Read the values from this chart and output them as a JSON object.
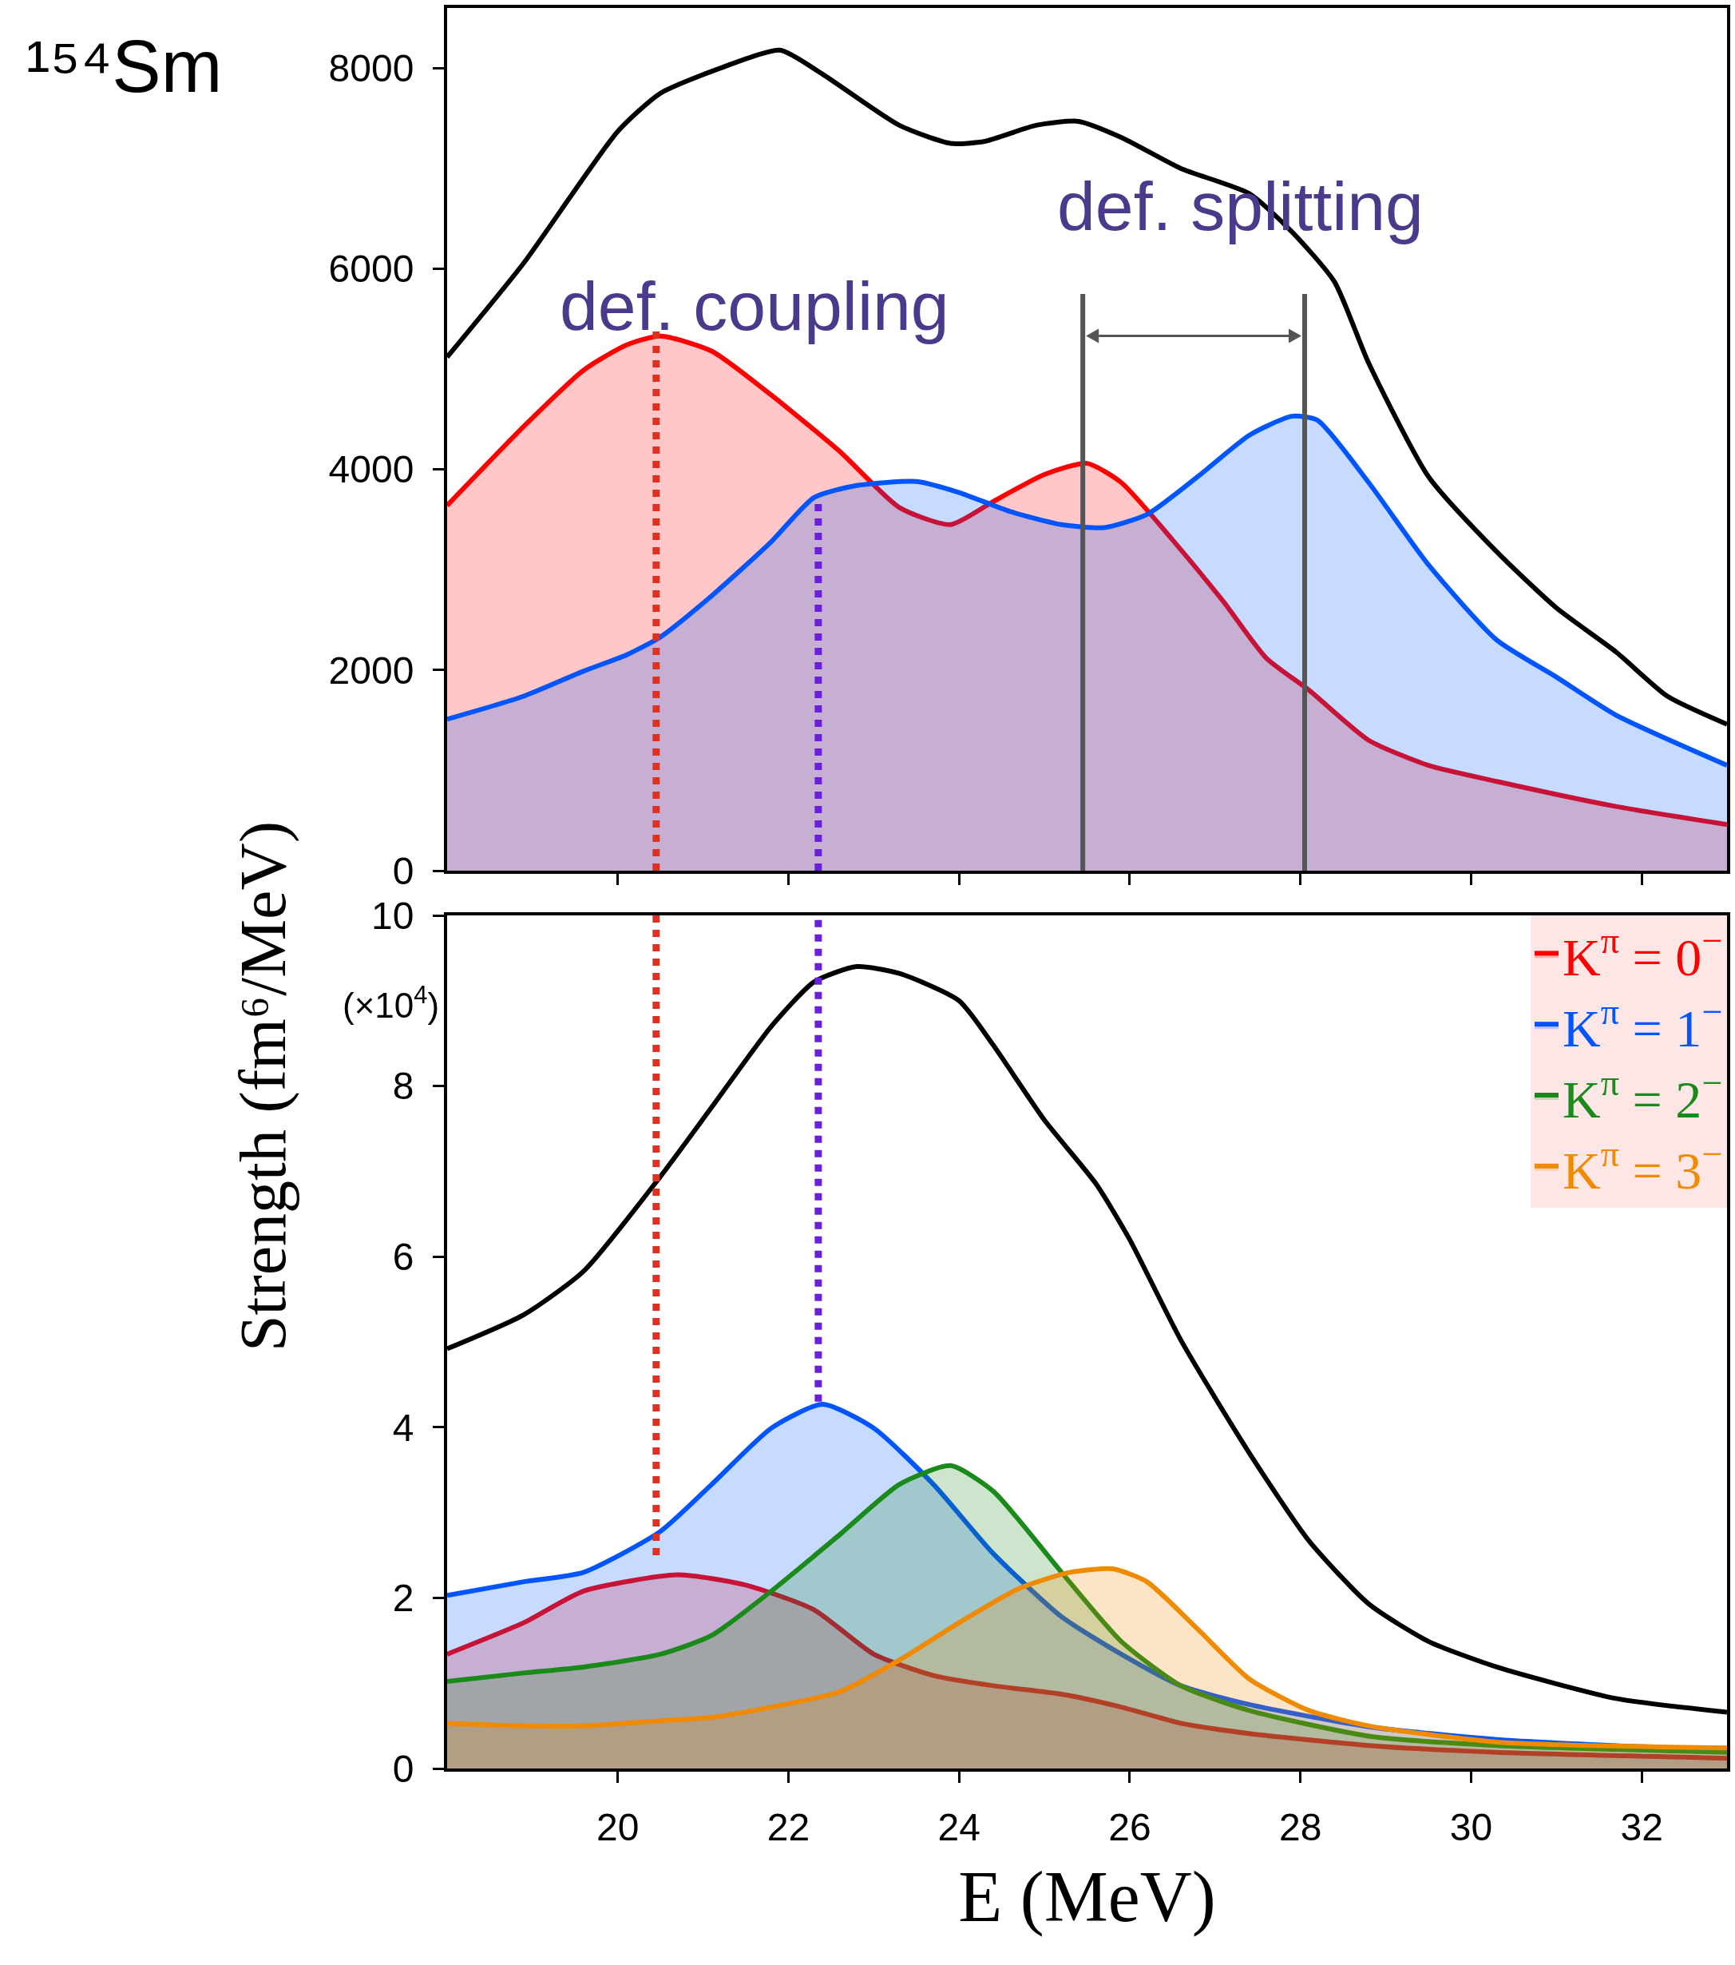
{
  "chart_data": [
    {
      "type": "area",
      "ylabel": "Strength (fm⁶/MeV)",
      "xlim": [
        18,
        33
      ],
      "xticks": [
        20,
        22,
        24,
        26,
        28,
        30,
        32
      ],
      "ylim": [
        0,
        8600
      ],
      "yticks": [
        0,
        2000,
        4000,
        6000,
        8000
      ],
      "tick_labels": "y",
      "annotations": [
        "¹⁵⁴Sm",
        "def. coupling",
        "def. splitting"
      ],
      "series": [
        {
          "type": "line",
          "color": "#000000",
          "x": [
            18,
            18.9,
            20,
            20.5,
            21.2,
            21.9,
            22.4,
            23.3,
            23.9,
            24.3,
            24.9,
            25.4,
            25.9,
            26.6,
            27.4,
            27.9,
            28.4,
            28.8,
            29.5,
            30.3,
            31,
            31.7,
            32.3,
            33
          ],
          "values": [
            5120,
            6060,
            7370,
            7750,
            8000,
            8180,
            7940,
            7430,
            7250,
            7270,
            7430,
            7470,
            7310,
            7000,
            6750,
            6370,
            5870,
            5060,
            3930,
            3180,
            2620,
            2180,
            1740,
            1460
          ]
        },
        {
          "type": "area",
          "color": "#ff0000",
          "x": [
            18,
            18.9,
            19.6,
            20.1,
            20.5,
            21.1,
            21.8,
            22.6,
            23.3,
            23.9,
            24.4,
            25,
            25.5,
            25.9,
            26.5,
            27.1,
            27.6,
            28.1,
            28.8,
            29.5,
            30.3,
            31.7,
            33
          ],
          "values": [
            3640,
            4430,
            4990,
            5240,
            5330,
            5180,
            4740,
            4180,
            3620,
            3450,
            3680,
            3950,
            4060,
            3870,
            3300,
            2680,
            2120,
            1800,
            1300,
            1050,
            890,
            640,
            460
          ]
        },
        {
          "type": "area",
          "color": "#0055ff",
          "x": [
            18,
            18.9,
            19.6,
            20.1,
            20.5,
            21.1,
            21.8,
            22.3,
            22.8,
            23.5,
            24,
            24.6,
            25.2,
            25.7,
            26.2,
            26.8,
            27.4,
            27.9,
            28.2,
            28.8,
            29.5,
            30.3,
            31,
            31.7,
            33
          ],
          "values": [
            1510,
            1740,
            1990,
            2150,
            2330,
            2740,
            3280,
            3720,
            3840,
            3880,
            3770,
            3580,
            3450,
            3420,
            3550,
            3930,
            4340,
            4530,
            4490,
            3870,
            3050,
            2300,
            1930,
            1550,
            1050
          ]
        },
        {
          "type": "line",
          "color": "#e03020",
          "line_style": "dotted",
          "x": [
            20.45,
            20.45
          ],
          "values": [
            0,
            5400
          ]
        },
        {
          "type": "line",
          "color": "#6a20d8",
          "line_style": "dotted",
          "x": [
            22.35,
            22.35
          ],
          "values": [
            0,
            3700
          ]
        },
        {
          "type": "line",
          "color": "#555555",
          "x": [
            25.45,
            25.45
          ],
          "values": [
            0,
            5750
          ]
        },
        {
          "type": "line",
          "color": "#555555",
          "x": [
            28.05,
            28.05
          ],
          "values": [
            0,
            5750
          ]
        }
      ]
    },
    {
      "type": "area",
      "xlabel": "E (MeV)",
      "xlim": [
        18,
        33
      ],
      "xticks": [
        20,
        22,
        24,
        26,
        28,
        30,
        32
      ],
      "ylim": [
        0,
        10
      ],
      "yticks": [
        0,
        2,
        4,
        6,
        8,
        10
      ],
      "legend": "top right",
      "annotations": [
        "(×10$^{4}$)"
      ],
      "series": [
        {
          "type": "line",
          "color": "#000000",
          "x": [
            18,
            18.9,
            19.6,
            20.5,
            21.1,
            21.8,
            22.3,
            22.8,
            23.3,
            24,
            24.4,
            25,
            25.6,
            26,
            26.6,
            27.4,
            28.1,
            28.8,
            29.5,
            30.3,
            31.7,
            33
          ],
          "values": [
            4.92,
            5.32,
            5.83,
            6.94,
            7.75,
            8.7,
            9.22,
            9.4,
            9.32,
            9.0,
            8.48,
            7.6,
            6.86,
            6.2,
            5.02,
            3.7,
            2.67,
            1.93,
            1.49,
            1.19,
            0.82,
            0.66
          ]
        },
        {
          "type": "area",
          "name": "K$^{π}$ = 0$^{−}$",
          "color": "#ff0000",
          "x": [
            18,
            18.9,
            19.6,
            20.7,
            21.5,
            22.3,
            23,
            23.7,
            24.4,
            25.2,
            25.9,
            26.6,
            27.4,
            28.8,
            30.3,
            33
          ],
          "values": [
            1.34,
            1.71,
            2.08,
            2.27,
            2.15,
            1.86,
            1.34,
            1.09,
            0.97,
            0.87,
            0.72,
            0.53,
            0.41,
            0.27,
            0.19,
            0.12
          ]
        },
        {
          "type": "area",
          "name": "K$^{π}$ = 1$^{−}$",
          "color": "#0055ff",
          "x": [
            18,
            18.9,
            19.6,
            20.5,
            21.1,
            21.8,
            22.4,
            23,
            23.7,
            24.4,
            25.2,
            25.9,
            26.6,
            27.4,
            28.8,
            30.3,
            33
          ],
          "values": [
            2.03,
            2.19,
            2.3,
            2.78,
            3.33,
            3.99,
            4.27,
            3.99,
            3.33,
            2.52,
            1.78,
            1.34,
            0.97,
            0.75,
            0.49,
            0.34,
            0.21
          ]
        },
        {
          "type": "area",
          "name": "K$^{π}$ = 2$^{−}$",
          "color": "#1a8a1a",
          "x": [
            18,
            18.9,
            19.6,
            20.5,
            21.1,
            21.8,
            22.6,
            23.3,
            23.9,
            24.4,
            25.2,
            25.9,
            26.6,
            27.4,
            28.8,
            30.3,
            33
          ],
          "values": [
            1.02,
            1.12,
            1.19,
            1.34,
            1.56,
            2.08,
            2.74,
            3.33,
            3.55,
            3.25,
            2.3,
            1.49,
            0.97,
            0.68,
            0.38,
            0.27,
            0.19
          ]
        },
        {
          "type": "area",
          "name": "K$^{π}$ = 3$^{−}$",
          "color": "#f08a00",
          "x": [
            18,
            18.9,
            19.6,
            20.5,
            21.1,
            21.8,
            22.6,
            23.3,
            24,
            24.7,
            25.3,
            25.8,
            26.2,
            26.8,
            27.4,
            28.1,
            28.8,
            30.3,
            33
          ],
          "values": [
            0.53,
            0.5,
            0.5,
            0.56,
            0.6,
            0.72,
            0.9,
            1.27,
            1.71,
            2.11,
            2.3,
            2.34,
            2.19,
            1.63,
            1.05,
            0.68,
            0.5,
            0.31,
            0.24
          ]
        },
        {
          "type": "line",
          "color": "#e03020",
          "line_style": "dotted",
          "x": [
            20.45,
            20.45
          ],
          "values": [
            2.5,
            10
          ]
        },
        {
          "type": "line",
          "color": "#6a20d8",
          "line_style": "dotted",
          "x": [
            22.35,
            22.35
          ],
          "values": [
            4.3,
            10
          ]
        }
      ]
    }
  ]
}
